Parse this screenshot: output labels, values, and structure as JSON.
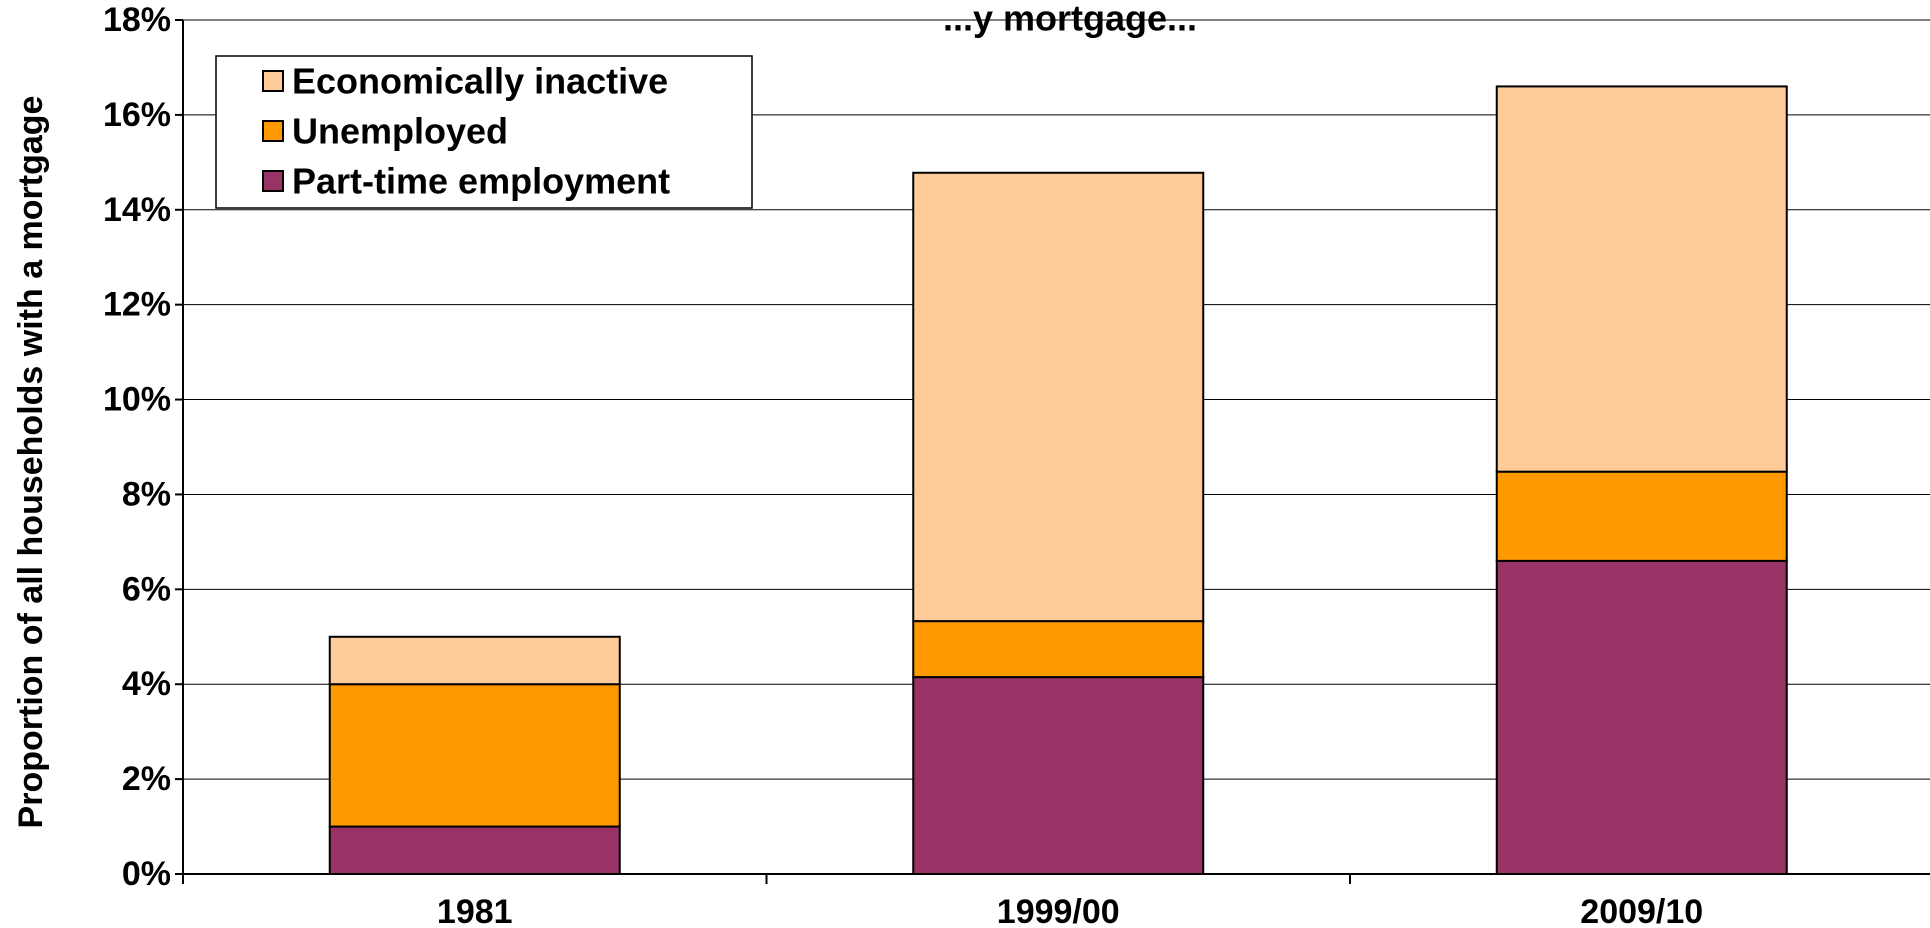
{
  "chart_data": {
    "type": "bar",
    "stacked": true,
    "title": "...y mortgage...",
    "xlabel": "",
    "ylabel": "Proportion of all households with a mortgage",
    "ylim": [
      0,
      18
    ],
    "y_ticks": [
      "0%",
      "2%",
      "4%",
      "6%",
      "8%",
      "10%",
      "12%",
      "14%",
      "16%",
      "18%"
    ],
    "y_tick_values": [
      0,
      2,
      4,
      6,
      8,
      10,
      12,
      14,
      16,
      18
    ],
    "grid": true,
    "legend_position": "top-left",
    "categories": [
      "1981",
      "1999/00",
      "2009/10"
    ],
    "series": [
      {
        "name": "Part-time employment",
        "color": "#993366",
        "values": [
          1.0,
          4.15,
          6.6
        ]
      },
      {
        "name": "Unemployed",
        "color": "#FF9900",
        "values": [
          3.0,
          1.18,
          1.88
        ]
      },
      {
        "name": "Economically inactive",
        "color": "#FFCC99",
        "values": [
          1.0,
          9.45,
          8.12
        ]
      }
    ],
    "legend_order": [
      "Economically inactive",
      "Unemployed",
      "Part-time employment"
    ]
  }
}
